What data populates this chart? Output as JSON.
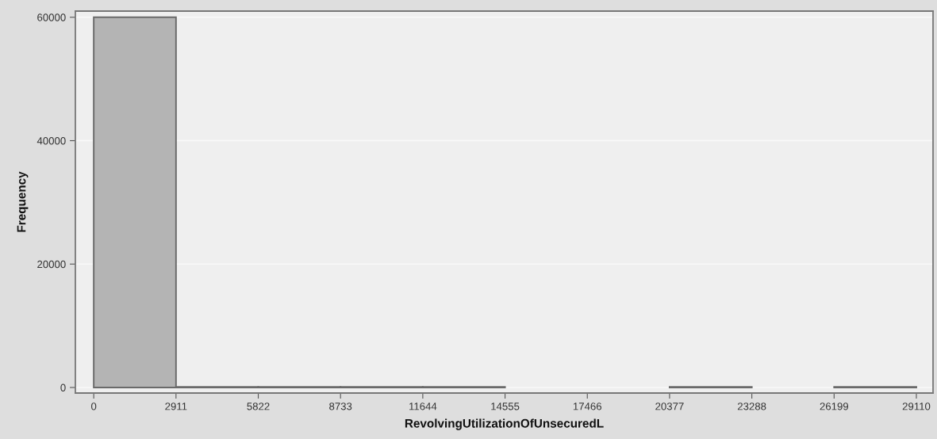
{
  "chart_data": {
    "type": "histogram",
    "xlabel": "RevolvingUtilizationOfUnsecuredL",
    "ylabel": "Frequency",
    "bins": [
      0,
      2911,
      5822,
      8733,
      11644,
      14555,
      17466,
      20377,
      23288,
      26199,
      29110
    ],
    "values": [
      60000,
      100,
      100,
      100,
      100,
      0,
      0,
      100,
      0,
      100
    ],
    "color": "#b4b4b4",
    "xlim": [
      -650,
      29700
    ],
    "ylim": [
      -900,
      61000
    ],
    "xticks": [
      0,
      2911,
      5822,
      8733,
      11644,
      14555,
      17466,
      20377,
      23288,
      26199,
      29110
    ],
    "yticks": [
      0,
      20000,
      40000,
      60000
    ],
    "grid": "y",
    "legend": false
  }
}
